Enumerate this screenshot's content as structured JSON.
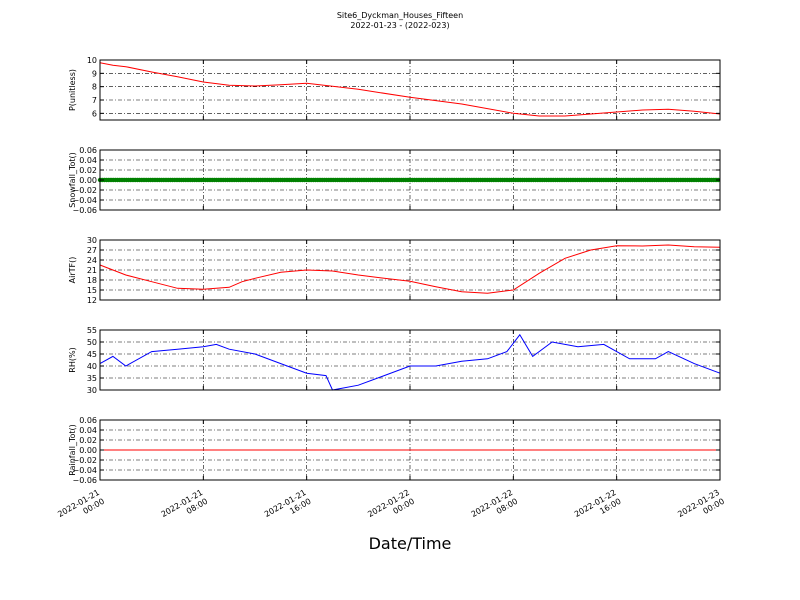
{
  "title_line1": "Site6_Dyckman_Houses_Fifteen",
  "title_line2": "2022-01-23 - (2022-023)",
  "xlabel": "Date/Time",
  "x_ticks": [
    {
      "x": "2022-01-21 00:00",
      "label": [
        "2022-01-21",
        "00:00"
      ]
    },
    {
      "x": "2022-01-21 08:00",
      "label": [
        "2022-01-21",
        "08:00"
      ]
    },
    {
      "x": "2022-01-21 16:00",
      "label": [
        "2022-01-21",
        "16:00"
      ]
    },
    {
      "x": "2022-01-22 00:00",
      "label": [
        "2022-01-22",
        "00:00"
      ]
    },
    {
      "x": "2022-01-22 08:00",
      "label": [
        "2022-01-22",
        "08:00"
      ]
    },
    {
      "x": "2022-01-22 16:00",
      "label": [
        "2022-01-22",
        "16:00"
      ]
    },
    {
      "x": "2022-01-23 00:00",
      "label": [
        "2022-01-23",
        "00:00"
      ]
    }
  ],
  "colors": {
    "red": "#ff0000",
    "green": "#008000",
    "blue": "#0000ff",
    "axes": "#000000"
  },
  "chart_data": [
    {
      "type": "line",
      "ylabel": "P(unitless)",
      "xlim": [
        "2022-01-21 00:00",
        "2022-01-23 00:00"
      ],
      "ylim": [
        5.5,
        10
      ],
      "yticks": [
        6,
        7,
        8,
        9,
        10
      ],
      "grid": true,
      "series": [
        {
          "color": "#ff0000",
          "marker": "none",
          "x": [
            "2022-01-21 00:00",
            "2022-01-21 01:00",
            "2022-01-21 02:00",
            "2022-01-21 04:00",
            "2022-01-21 06:00",
            "2022-01-21 08:00",
            "2022-01-21 10:00",
            "2022-01-21 12:00",
            "2022-01-21 14:00",
            "2022-01-21 16:00",
            "2022-01-21 20:00",
            "2022-01-22 00:00",
            "2022-01-22 04:00",
            "2022-01-22 08:00",
            "2022-01-22 10:00",
            "2022-01-22 12:00",
            "2022-01-22 14:00",
            "2022-01-22 16:00",
            "2022-01-22 18:00",
            "2022-01-22 20:00",
            "2022-01-22 22:00",
            "2022-01-23 00:00"
          ],
          "y": [
            9.8,
            9.6,
            9.5,
            9.1,
            8.75,
            8.35,
            8.1,
            8.05,
            8.15,
            8.25,
            7.8,
            7.2,
            6.7,
            6.0,
            5.8,
            5.8,
            5.95,
            6.1,
            6.25,
            6.3,
            6.15,
            5.95
          ]
        }
      ]
    },
    {
      "type": "line",
      "ylabel": "Snowfall_Tot()",
      "xlim": [
        "2022-01-21 00:00",
        "2022-01-23 00:00"
      ],
      "ylim": [
        -0.06,
        0.06
      ],
      "yticks": [
        -0.06,
        -0.04,
        -0.02,
        0.0,
        0.02,
        0.04,
        0.06
      ],
      "ytick_labels": [
        "−0.06",
        "−0.04",
        "−0.02",
        "0.00",
        "0.02",
        "0.04",
        "0.06"
      ],
      "grid": true,
      "series": [
        {
          "color": "#008000",
          "marker": "circle",
          "constant": 0.0
        }
      ]
    },
    {
      "type": "line",
      "ylabel": "AirTF()",
      "xlim": [
        "2022-01-21 00:00",
        "2022-01-23 00:00"
      ],
      "ylim": [
        12,
        30
      ],
      "yticks": [
        12,
        15,
        18,
        21,
        24,
        27,
        30
      ],
      "grid": true,
      "series": [
        {
          "color": "#ff0000",
          "marker": "none",
          "x": [
            "2022-01-21 00:00",
            "2022-01-21 02:00",
            "2022-01-21 04:00",
            "2022-01-21 06:00",
            "2022-01-21 08:00",
            "2022-01-21 10:00",
            "2022-01-21 11:00",
            "2022-01-21 12:00",
            "2022-01-21 14:00",
            "2022-01-21 16:00",
            "2022-01-21 18:00",
            "2022-01-21 20:00",
            "2022-01-21 22:00",
            "2022-01-22 00:00",
            "2022-01-22 02:00",
            "2022-01-22 04:00",
            "2022-01-22 06:00",
            "2022-01-22 08:00",
            "2022-01-22 10:00",
            "2022-01-22 12:00",
            "2022-01-22 14:00",
            "2022-01-22 16:00",
            "2022-01-22 18:00",
            "2022-01-22 20:00",
            "2022-01-22 22:00",
            "2022-01-23 00:00"
          ],
          "y": [
            22.5,
            19.5,
            17.5,
            15.5,
            15.2,
            15.8,
            17.5,
            18.5,
            20.3,
            21.0,
            20.7,
            19.5,
            18.5,
            17.6,
            16.0,
            14.5,
            14.0,
            15.0,
            20.0,
            24.5,
            27.0,
            28.3,
            28.2,
            28.5,
            28.0,
            27.8
          ]
        }
      ]
    },
    {
      "type": "line",
      "ylabel": "RH(%)",
      "xlim": [
        "2022-01-21 00:00",
        "2022-01-23 00:00"
      ],
      "ylim": [
        30,
        55
      ],
      "yticks": [
        30,
        35,
        40,
        45,
        50,
        55
      ],
      "grid": true,
      "series": [
        {
          "color": "#0000ff",
          "marker": "none",
          "x": [
            "2022-01-21 00:00",
            "2022-01-21 01:00",
            "2022-01-21 02:00",
            "2022-01-21 04:00",
            "2022-01-21 06:00",
            "2022-01-21 08:00",
            "2022-01-21 09:00",
            "2022-01-21 10:00",
            "2022-01-21 12:00",
            "2022-01-21 14:00",
            "2022-01-21 16:00",
            "2022-01-21 17:30",
            "2022-01-21 18:00",
            "2022-01-21 20:00",
            "2022-01-21 22:00",
            "2022-01-22 00:00",
            "2022-01-22 02:00",
            "2022-01-22 04:00",
            "2022-01-22 06:00",
            "2022-01-22 07:30",
            "2022-01-22 08:30",
            "2022-01-22 09:30",
            "2022-01-22 11:00",
            "2022-01-22 13:00",
            "2022-01-22 15:00",
            "2022-01-22 17:00",
            "2022-01-22 19:00",
            "2022-01-22 20:00",
            "2022-01-22 22:00",
            "2022-01-23 00:00"
          ],
          "y": [
            41,
            44,
            40,
            46,
            47,
            48,
            49,
            47,
            45,
            41,
            37,
            36,
            30,
            32,
            36,
            40,
            40,
            42,
            43,
            46,
            53,
            44,
            50,
            48,
            49,
            43,
            43,
            46,
            41,
            37
          ]
        }
      ]
    },
    {
      "type": "line",
      "ylabel": "Rainfall_Tot()",
      "xlim": [
        "2022-01-21 00:00",
        "2022-01-23 00:00"
      ],
      "ylim": [
        -0.06,
        0.06
      ],
      "yticks": [
        -0.06,
        -0.04,
        -0.02,
        0.0,
        0.02,
        0.04,
        0.06
      ],
      "ytick_labels": [
        "−0.06",
        "−0.04",
        "−0.02",
        "0.00",
        "0.02",
        "0.04",
        "0.06"
      ],
      "grid": true,
      "series": [
        {
          "color": "#ff0000",
          "marker": "none",
          "constant": 0.0
        }
      ]
    }
  ]
}
